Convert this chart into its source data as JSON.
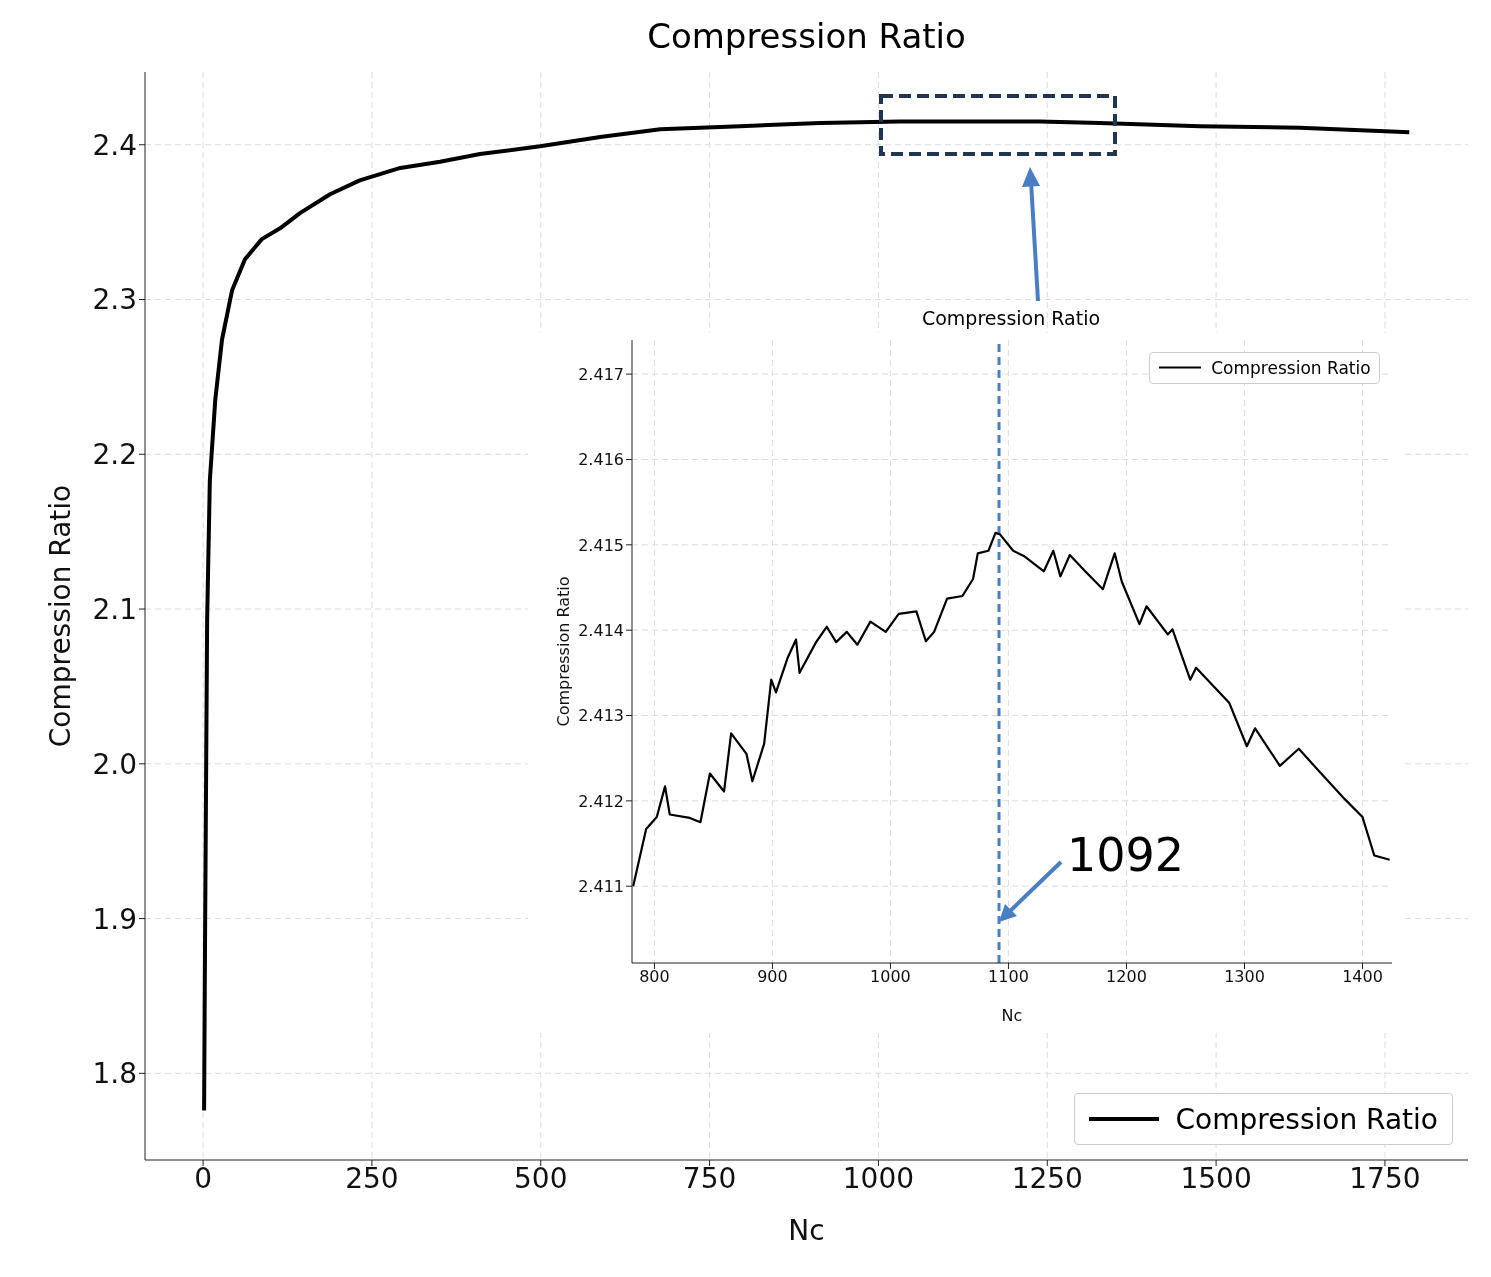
{
  "chart_data": [
    {
      "type": "line",
      "title": "Compression Ratio",
      "xlabel": "Nc",
      "ylabel": "Compression Ratio",
      "xlim": [
        -86,
        1873
      ],
      "xticks": [
        0,
        250,
        500,
        750,
        1000,
        1250,
        1500,
        1750
      ],
      "ylim": [
        1.744,
        2.447
      ],
      "yticks": [
        1.8,
        1.9,
        {
          "value": 2.0,
          "label": "2.0"
        },
        2.1,
        2.2,
        2.3,
        2.4
      ],
      "grid": true,
      "legend": "bottom right",
      "marker": "none",
      "line_style": "solid",
      "annotations": [
        "Compression Ratio"
      ],
      "series": [
        {
          "name": "Compression Ratio",
          "color": "#000000",
          "x": [
            1.5,
            3,
            6,
            10,
            18,
            28,
            43,
            62,
            87,
            114,
            144,
            188,
            232,
            292,
            351,
            410,
            499,
            588,
            677,
            795,
            914,
            1032,
            1121,
            1239,
            1328,
            1476,
            1624,
            1786
          ],
          "values": [
            1.776,
            1.893,
            2.093,
            2.183,
            2.235,
            2.274,
            2.306,
            2.326,
            2.339,
            2.346,
            2.356,
            2.368,
            2.377,
            2.385,
            2.389,
            2.394,
            2.399,
            2.405,
            2.41,
            2.412,
            2.414,
            2.415,
            2.415,
            2.415,
            2.414,
            2.412,
            2.411,
            2.408
          ]
        }
      ]
    },
    {
      "type": "line",
      "xlabel": "Nc",
      "ylabel": "Compression Ratio",
      "xlim": [
        781,
        1425
      ],
      "xticks": [
        800,
        900,
        1000,
        1100,
        1200,
        1300,
        1400
      ],
      "ylim": [
        2.4101,
        2.4174
      ],
      "yticks": [
        2.411,
        2.412,
        2.413,
        2.414,
        2.415,
        2.416,
        2.417
      ],
      "grid": true,
      "legend": "top right",
      "marker": "none",
      "line_style": "solid",
      "ref_lines": [
        {
          "axis": "x",
          "value": 1092,
          "color": "#4a7ec4",
          "line_style": "dashed"
        }
      ],
      "annotations": [
        {
          "text": "1092",
          "x": 1092,
          "y": 2.4106
        }
      ],
      "series": [
        {
          "name": "Compression Ratio",
          "color": "#000000",
          "x": [
            782,
            793,
            802,
            809,
            813,
            830,
            839,
            847,
            859,
            865,
            878,
            883,
            893,
            899,
            903,
            913,
            920,
            923,
            937,
            946,
            954,
            963,
            972,
            983,
            996,
            1007,
            1022,
            1030,
            1037,
            1048,
            1061,
            1070,
            1074,
            1083,
            1089,
            1093,
            1104,
            1113,
            1130,
            1138,
            1144,
            1152,
            1165,
            1180,
            1190,
            1196,
            1211,
            1217,
            1235,
            1239,
            1254,
            1259,
            1287,
            1302,
            1309,
            1330,
            1346,
            1365,
            1385,
            1400,
            1410,
            1423
          ],
          "values": [
            2.411,
            2.41167,
            2.41181,
            2.41217,
            2.41184,
            2.4118,
            2.41175,
            2.41232,
            2.41211,
            2.41279,
            2.41255,
            2.41223,
            2.41267,
            2.41342,
            2.41327,
            2.41368,
            2.41389,
            2.4135,
            2.41386,
            2.41404,
            2.41386,
            2.41398,
            2.41383,
            2.4141,
            2.41398,
            2.41419,
            2.41422,
            2.41387,
            2.41398,
            2.41437,
            2.4144,
            2.4146,
            2.4149,
            2.41493,
            2.41514,
            2.41512,
            2.41493,
            2.41487,
            2.41469,
            2.41493,
            2.41463,
            2.41488,
            2.41469,
            2.41448,
            2.4149,
            2.41457,
            2.41407,
            2.41428,
            2.41395,
            2.41401,
            2.41342,
            2.41356,
            2.41315,
            2.41264,
            2.41285,
            2.41241,
            2.41261,
            2.41232,
            2.41202,
            2.41181,
            2.41136,
            2.41131
          ]
        }
      ]
    }
  ]
}
